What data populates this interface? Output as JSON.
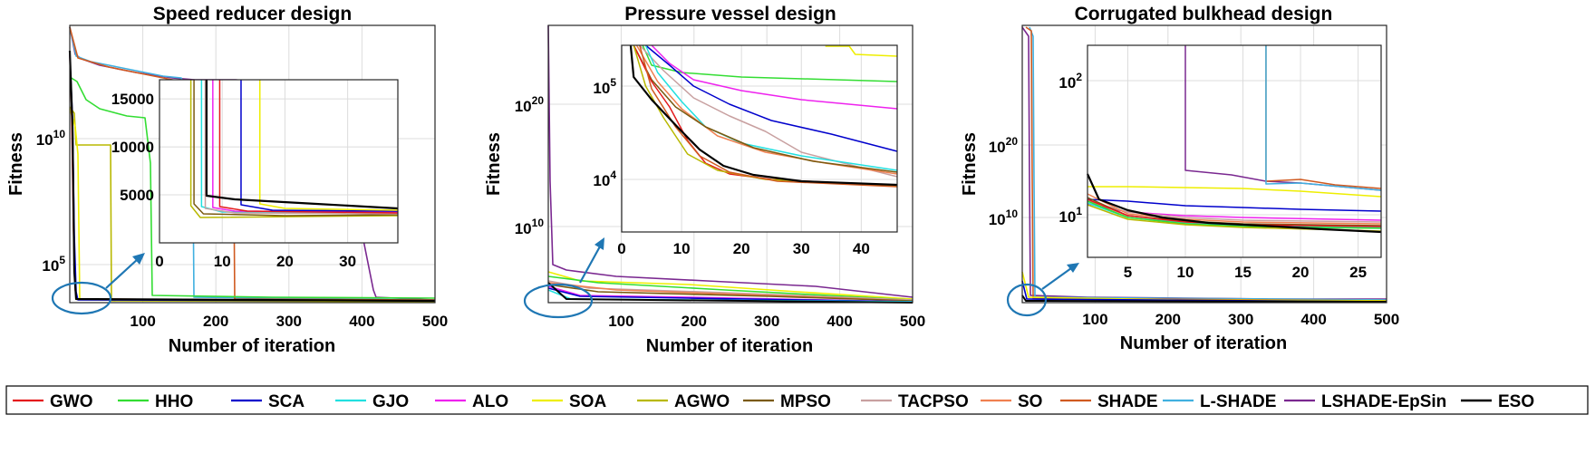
{
  "chart_data": [
    {
      "type": "line",
      "title": "Speed reducer design",
      "xlabel": "Number of iteration",
      "ylabel": "Fitness",
      "yscale": "log",
      "x_ticks": [
        "100",
        "200",
        "300",
        "400",
        "500"
      ],
      "y_ticks": [
        "10^5",
        "10^10"
      ],
      "grid": true,
      "inset": {
        "x_ticks": [
          "0",
          "10",
          "20",
          "30"
        ],
        "y_ticks": [
          "5000",
          "10000",
          "15000"
        ],
        "yscale": "linear"
      }
    },
    {
      "type": "line",
      "title": "Pressure vessel design",
      "xlabel": "Number of iteration",
      "ylabel": "Fitness",
      "yscale": "log",
      "x_ticks": [
        "100",
        "200",
        "300",
        "400",
        "500"
      ],
      "y_ticks": [
        "10^10",
        "10^20"
      ],
      "grid": true,
      "inset": {
        "x_ticks": [
          "0",
          "10",
          "20",
          "30",
          "40"
        ],
        "y_ticks": [
          "10^4",
          "10^5"
        ],
        "yscale": "log"
      }
    },
    {
      "type": "line",
      "title": "Corrugated bulkhead design",
      "xlabel": "Number of iteration",
      "ylabel": "Fitness",
      "yscale": "log",
      "x_ticks": [
        "100",
        "200",
        "300",
        "400",
        "500"
      ],
      "y_ticks": [
        "10^10",
        "10^20"
      ],
      "grid": true,
      "inset": {
        "x_ticks": [
          "5",
          "10",
          "15",
          "20",
          "25"
        ],
        "y_ticks": [
          "10^1",
          "10^2"
        ],
        "yscale": "log"
      }
    }
  ],
  "legend": [
    {
      "name": "GWO",
      "color": "#e41a1c"
    },
    {
      "name": "HHO",
      "color": "#33dd33"
    },
    {
      "name": "SCA",
      "color": "#0000cc"
    },
    {
      "name": "GJO",
      "color": "#22e0e0"
    },
    {
      "name": "ALO",
      "color": "#ee22ee"
    },
    {
      "name": "SOA",
      "color": "#eeee00"
    },
    {
      "name": "AGWO",
      "color": "#b8b800"
    },
    {
      "name": "MPSO",
      "color": "#7a5a10"
    },
    {
      "name": "TACPSO",
      "color": "#c8a0a0"
    },
    {
      "name": "SO",
      "color": "#f08050"
    },
    {
      "name": "SHADE",
      "color": "#d05a20"
    },
    {
      "name": "L-SHADE",
      "color": "#40b0e0"
    },
    {
      "name": "LSHADE-EpSin",
      "color": "#7a2890"
    },
    {
      "name": "ESO",
      "color": "#000000"
    }
  ]
}
